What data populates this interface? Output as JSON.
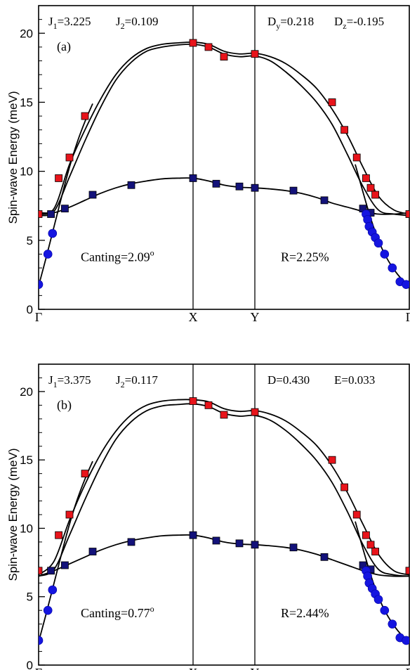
{
  "chart_data": [
    {
      "type": "scatter",
      "panel_label": "(a)",
      "ylabel": "Spin-wave Energy (meV)",
      "ylim": [
        0,
        22
      ],
      "yticks": [
        0,
        5,
        10,
        15,
        20
      ],
      "kpoints": [
        "Γ",
        "X",
        "Y",
        "Γ"
      ],
      "kpoint_positions": [
        0,
        1,
        1.4,
        2.4
      ],
      "xlim": [
        0,
        2.4
      ],
      "annotations": {
        "j1": {
          "label": "J",
          "sub": "1",
          "value": "=3.225"
        },
        "j2": {
          "label": "J",
          "sub": "2",
          "value": "=0.109"
        },
        "p3": {
          "label": "D",
          "sub": "y",
          "value": "=0.218"
        },
        "p4": {
          "label": "D",
          "sub": "z",
          "value": "=-0.195"
        },
        "canting": {
          "text": "Canting=2.09",
          "sup": "o"
        },
        "r": "R=2.25%"
      },
      "series": [
        {
          "name": "",
          "color": "#e8141b",
          "marker": "square",
          "x": [
            0.0,
            0.13,
            0.2,
            0.3,
            1.0,
            1.1,
            1.2,
            1.4,
            1.9,
            1.98,
            2.06,
            2.12,
            2.15,
            2.18,
            2.4
          ],
          "y": [
            6.9,
            9.5,
            11.0,
            14.0,
            19.3,
            19.0,
            18.3,
            18.5,
            15.0,
            13.0,
            11.0,
            9.5,
            8.8,
            8.3,
            6.9
          ]
        },
        {
          "name": "",
          "color": "#13127a",
          "marker": "square",
          "x": [
            0.08,
            0.17,
            0.35,
            0.6,
            1.0,
            1.15,
            1.3,
            1.4,
            1.65,
            1.85,
            2.1,
            2.15
          ],
          "y": [
            6.9,
            7.3,
            8.3,
            9.0,
            9.5,
            9.1,
            8.9,
            8.8,
            8.6,
            7.9,
            7.3,
            7.0
          ]
        },
        {
          "name": "",
          "color": "#1515e0",
          "marker": "circle",
          "x": [
            0.0,
            0.06,
            0.09,
            2.12,
            2.13,
            2.14,
            2.16,
            2.18,
            2.2,
            2.24,
            2.29,
            2.34,
            2.38
          ],
          "y": [
            1.8,
            4.0,
            5.5,
            6.9,
            6.5,
            6.0,
            5.6,
            5.2,
            4.8,
            4.0,
            3.0,
            2.0,
            1.8
          ]
        }
      ],
      "curves": [
        {
          "x": [
            0.0,
            0.1,
            0.2,
            0.3,
            0.4,
            0.5,
            0.6,
            0.7,
            0.8,
            0.9,
            1.0,
            1.1,
            1.2,
            1.3,
            1.4,
            1.5,
            1.6,
            1.7,
            1.8,
            1.9,
            2.0,
            2.1,
            2.2,
            2.3,
            2.4
          ],
          "y": [
            6.9,
            7.3,
            10.5,
            13.0,
            15.2,
            17.0,
            18.2,
            18.9,
            19.2,
            19.3,
            19.35,
            19.2,
            18.7,
            18.5,
            18.55,
            18.3,
            17.8,
            17.0,
            16.0,
            14.5,
            12.6,
            10.3,
            8.2,
            7.2,
            6.9
          ]
        },
        {
          "x": [
            0.0,
            0.1,
            0.2,
            0.3,
            0.4,
            0.5,
            0.6,
            0.7,
            0.8,
            0.9,
            1.0,
            1.1,
            1.2,
            1.3,
            1.4,
            1.5,
            1.6,
            1.7,
            1.8,
            1.9,
            2.0,
            2.1,
            2.2,
            2.3,
            2.4
          ],
          "y": [
            6.8,
            7.1,
            9.6,
            12.2,
            14.6,
            16.6,
            17.9,
            18.7,
            19.0,
            19.15,
            19.2,
            19.0,
            18.5,
            18.3,
            18.35,
            18.0,
            17.2,
            16.2,
            15.0,
            13.4,
            11.2,
            8.9,
            7.2,
            6.9,
            6.8
          ]
        },
        {
          "x": [
            0.0,
            0.1,
            0.2,
            0.3,
            0.4,
            0.5,
            0.6,
            0.7,
            0.8,
            0.9,
            1.0,
            1.1,
            1.2,
            1.3,
            1.4,
            1.5,
            1.6,
            1.7,
            1.8,
            1.9,
            2.0,
            2.1,
            2.2,
            2.3,
            2.4
          ],
          "y": [
            7.0,
            7.0,
            7.4,
            7.9,
            8.4,
            8.8,
            9.1,
            9.3,
            9.45,
            9.5,
            9.5,
            9.3,
            9.0,
            8.85,
            8.8,
            8.72,
            8.6,
            8.4,
            8.1,
            7.7,
            7.4,
            7.1,
            6.9,
            6.9,
            7.0
          ]
        },
        {
          "x": [
            0.0,
            0.05,
            0.1,
            0.15,
            0.2,
            0.25,
            0.3,
            0.35
          ],
          "y": [
            1.7,
            3.8,
            6.0,
            8.2,
            10.3,
            12.1,
            13.6,
            14.9
          ]
        },
        {
          "x": [
            2.05,
            2.1,
            2.15,
            2.2,
            2.25,
            2.3,
            2.35,
            2.4
          ],
          "y": [
            10.5,
            8.5,
            6.6,
            5.0,
            3.8,
            2.9,
            2.2,
            1.7
          ]
        }
      ]
    },
    {
      "type": "scatter",
      "panel_label": "(b)",
      "ylabel": "Spin-wave Energy (meV)",
      "ylim": [
        0,
        22
      ],
      "yticks": [
        0,
        5,
        10,
        15,
        20
      ],
      "kpoints": [
        "Γ",
        "X",
        "Y",
        "Γ"
      ],
      "kpoint_positions": [
        0,
        1,
        1.4,
        2.4
      ],
      "xlim": [
        0,
        2.4
      ],
      "annotations": {
        "j1": {
          "label": "J",
          "sub": "1",
          "value": "=3.375"
        },
        "j2": {
          "label": "J",
          "sub": "2",
          "value": "=0.117"
        },
        "p3": {
          "label": "D",
          "sub": "",
          "value": "=0.430"
        },
        "p4": {
          "label": "E",
          "sub": "",
          "value": "=0.033"
        },
        "canting": {
          "text": "Canting=0.77",
          "sup": "o"
        },
        "r": "R=2.44%"
      },
      "series": [
        {
          "name": "",
          "color": "#e8141b",
          "marker": "square",
          "x": [
            0.0,
            0.13,
            0.2,
            0.3,
            1.0,
            1.1,
            1.2,
            1.4,
            1.9,
            1.98,
            2.06,
            2.12,
            2.15,
            2.18,
            2.4
          ],
          "y": [
            6.9,
            9.5,
            11.0,
            14.0,
            19.3,
            19.0,
            18.3,
            18.5,
            15.0,
            13.0,
            11.0,
            9.5,
            8.8,
            8.3,
            6.9
          ]
        },
        {
          "name": "",
          "color": "#13127a",
          "marker": "square",
          "x": [
            0.08,
            0.17,
            0.35,
            0.6,
            1.0,
            1.15,
            1.3,
            1.4,
            1.65,
            1.85,
            2.1,
            2.15
          ],
          "y": [
            6.9,
            7.3,
            8.3,
            9.0,
            9.5,
            9.1,
            8.9,
            8.8,
            8.6,
            7.9,
            7.3,
            7.0
          ]
        },
        {
          "name": "",
          "color": "#1515e0",
          "marker": "circle",
          "x": [
            0.0,
            0.06,
            0.09,
            2.12,
            2.13,
            2.14,
            2.16,
            2.18,
            2.2,
            2.24,
            2.29,
            2.34,
            2.38
          ],
          "y": [
            1.8,
            4.0,
            5.5,
            6.9,
            6.5,
            6.0,
            5.6,
            5.2,
            4.8,
            4.0,
            3.0,
            2.0,
            1.8
          ]
        }
      ],
      "curves": [
        {
          "x": [
            0.0,
            0.1,
            0.2,
            0.3,
            0.4,
            0.5,
            0.6,
            0.7,
            0.8,
            0.9,
            1.0,
            1.1,
            1.2,
            1.3,
            1.4,
            1.5,
            1.6,
            1.7,
            1.8,
            1.9,
            2.0,
            2.1,
            2.2,
            2.3,
            2.4
          ],
          "y": [
            6.6,
            7.6,
            10.6,
            13.2,
            15.4,
            17.1,
            18.3,
            19.0,
            19.3,
            19.4,
            19.4,
            19.25,
            18.75,
            18.55,
            18.6,
            18.35,
            17.85,
            17.05,
            16.05,
            14.55,
            12.6,
            10.3,
            8.1,
            6.9,
            6.6
          ]
        },
        {
          "x": [
            0.0,
            0.1,
            0.2,
            0.3,
            0.4,
            0.5,
            0.6,
            0.7,
            0.8,
            0.9,
            1.0,
            1.1,
            1.2,
            1.3,
            1.4,
            1.5,
            1.6,
            1.7,
            1.8,
            1.9,
            2.0,
            2.1,
            2.2,
            2.3,
            2.4
          ],
          "y": [
            6.5,
            7.0,
            9.5,
            12.1,
            14.5,
            16.5,
            17.8,
            18.6,
            18.95,
            19.05,
            19.1,
            18.9,
            18.4,
            18.2,
            18.25,
            17.9,
            17.15,
            16.15,
            14.95,
            13.35,
            11.2,
            8.8,
            7.0,
            6.6,
            6.5
          ]
        },
        {
          "x": [
            0.0,
            0.1,
            0.2,
            0.3,
            0.4,
            0.5,
            0.6,
            0.7,
            0.8,
            0.9,
            1.0,
            1.1,
            1.2,
            1.3,
            1.4,
            1.5,
            1.6,
            1.7,
            1.8,
            1.9,
            2.0,
            2.1,
            2.2,
            2.3,
            2.4
          ],
          "y": [
            6.5,
            6.9,
            7.4,
            7.9,
            8.4,
            8.8,
            9.1,
            9.3,
            9.45,
            9.5,
            9.5,
            9.3,
            9.0,
            8.85,
            8.8,
            8.72,
            8.6,
            8.4,
            8.1,
            7.7,
            7.3,
            6.9,
            6.6,
            6.5,
            6.5
          ]
        },
        {
          "x": [
            0.0,
            0.05,
            0.1,
            0.15,
            0.2,
            0.25,
            0.3,
            0.35
          ],
          "y": [
            1.7,
            3.8,
            6.0,
            8.2,
            10.3,
            12.1,
            13.6,
            14.9
          ]
        },
        {
          "x": [
            2.05,
            2.1,
            2.15,
            2.2,
            2.25,
            2.3,
            2.35,
            2.4
          ],
          "y": [
            10.5,
            8.5,
            6.6,
            5.0,
            3.8,
            2.9,
            2.2,
            1.7
          ]
        }
      ]
    }
  ]
}
